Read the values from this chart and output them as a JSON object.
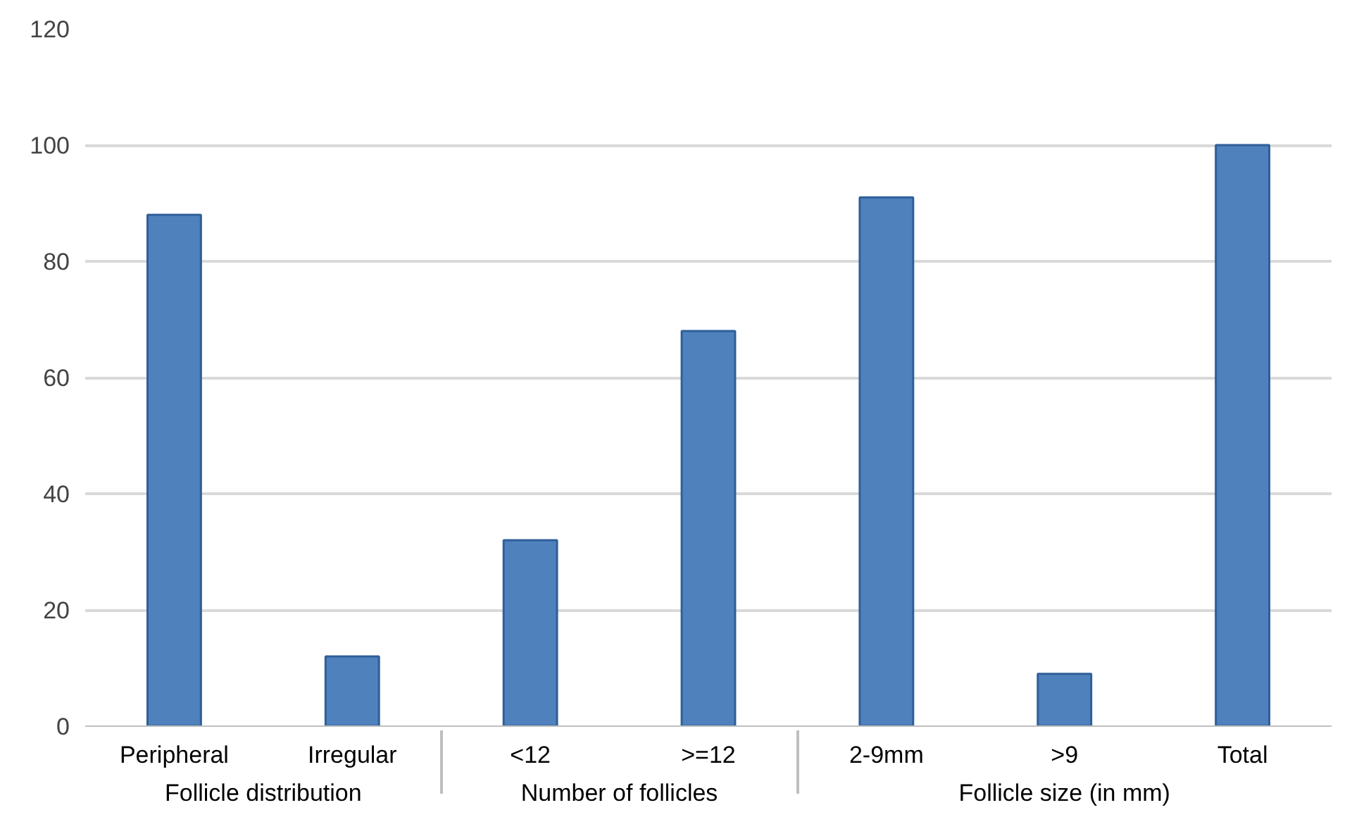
{
  "chart_data": {
    "type": "bar",
    "categories": [
      "Peripheral",
      "Irregular",
      "<12",
      ">=12",
      "2-9mm",
      ">9",
      "Total"
    ],
    "values": [
      88,
      12,
      32,
      68,
      91,
      9,
      100
    ],
    "color": "#4f81bd",
    "ylim": [
      0,
      120
    ],
    "yticks": [
      0,
      20,
      40,
      60,
      80,
      100,
      120
    ],
    "grid": "y",
    "annotations": [
      "Follicle distribution",
      "Number of follicles",
      "Follicle size (in mm)"
    ]
  }
}
